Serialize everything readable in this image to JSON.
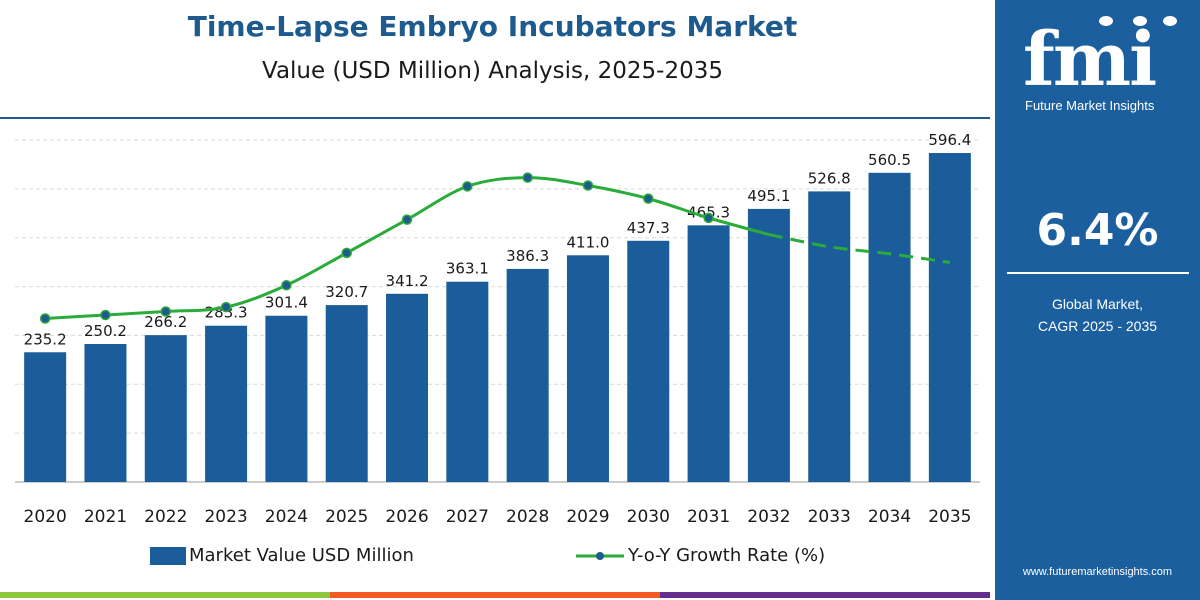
{
  "colors": {
    "brand": "#1d5a8e",
    "bar": "#1a5d9a",
    "growth_line": "#2aab3a",
    "panel": "#1b5f9e",
    "bottom_bar": [
      "#8dc63f",
      "#f15a24",
      "#662d91"
    ]
  },
  "header": {
    "title": "Time-Lapse Embryo Incubators Market",
    "subtitle": "Value (USD Million) Analysis, 2025-2035"
  },
  "legend": {
    "bar_label": "Market Value USD Million",
    "line_label": "Y-o-Y Growth Rate (%)"
  },
  "side_panel": {
    "logo_text": "fmi",
    "logo_subtitle": "Future Market Insights",
    "cagr_value": "6.4%",
    "cagr_label_line1": "Global Market,",
    "cagr_label_line2": "CAGR 2025 - 2035",
    "website": "www.futuremarketinsights.com"
  },
  "chart_data": {
    "type": "bar",
    "categories": [
      "2020",
      "2021",
      "2022",
      "2023",
      "2024",
      "2025",
      "2026",
      "2027",
      "2028",
      "2029",
      "2030",
      "2031",
      "2032",
      "2033",
      "2034",
      "2035"
    ],
    "series": [
      {
        "name": "Market Value USD Million",
        "type": "bar",
        "values": [
          235.2,
          250.2,
          266.2,
          283.3,
          301.4,
          320.7,
          341.2,
          363.1,
          386.3,
          411.0,
          437.3,
          465.3,
          495.1,
          526.8,
          560.5,
          596.4
        ],
        "data_labels": [
          "235.2",
          "250.2",
          "266.2",
          "283.3",
          "301.4",
          "320.7",
          "341.2",
          "363.1",
          "386.3",
          "411.0",
          "437.3",
          "465.3",
          "495.1",
          "526.8",
          "560.5",
          "596.4"
        ]
      },
      {
        "name": "Y-o-Y Growth Rate (%)",
        "type": "line",
        "relative_level": [
          0.18,
          0.2,
          0.22,
          0.245,
          0.37,
          0.555,
          0.745,
          0.935,
          0.985,
          0.94,
          0.865,
          0.755,
          0.66,
          0.59,
          0.55,
          0.5
        ],
        "dashed_from_index": 12
      }
    ],
    "ylim": [
      0,
      620
    ],
    "grid": true,
    "legend_position": "bottom"
  }
}
